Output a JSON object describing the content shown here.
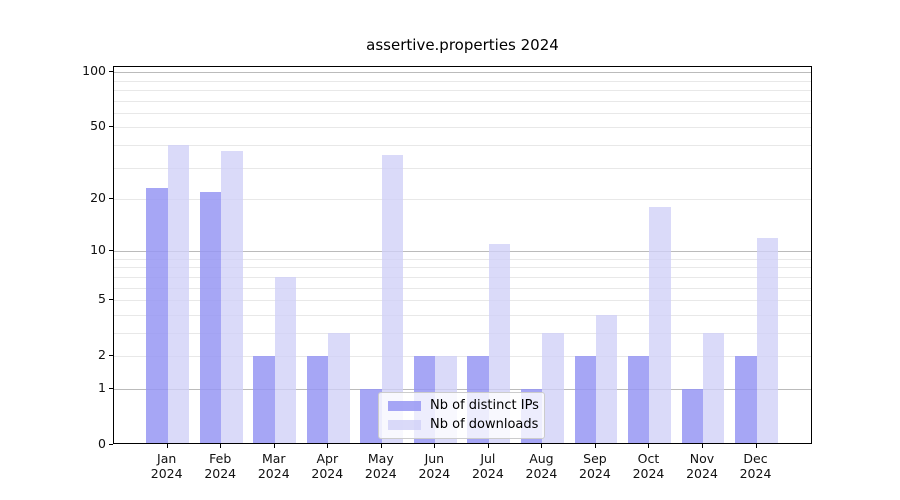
{
  "title": "assertive.properties 2024",
  "chart_data": {
    "type": "bar",
    "title": "assertive.properties 2024",
    "categories": [
      "Jan",
      "Feb",
      "Mar",
      "Apr",
      "May",
      "Jun",
      "Jul",
      "Aug",
      "Sep",
      "Oct",
      "Nov",
      "Dec"
    ],
    "year": "2024",
    "series": [
      {
        "name": "Nb of distinct IPs",
        "color": "#9797f3",
        "alpha": 0.85,
        "values": [
          23,
          22,
          2,
          2,
          1,
          2,
          2,
          1,
          2,
          2,
          1,
          2
        ]
      },
      {
        "name": "Nb of downloads",
        "color": "#cfcff7",
        "alpha": 0.78,
        "values": [
          40,
          37,
          7,
          3,
          35,
          2,
          11,
          3,
          4,
          18,
          3,
          12
        ]
      }
    ],
    "yscale": "log1p",
    "yticks": [
      0,
      1,
      2,
      5,
      10,
      20,
      50,
      100
    ],
    "minor_gridlines": [
      2,
      3,
      4,
      5,
      6,
      7,
      8,
      9,
      20,
      30,
      40,
      50,
      60,
      70,
      80,
      90
    ],
    "major_gridlines": [
      1,
      10,
      100
    ],
    "ylim": [
      0,
      106
    ],
    "grid": true,
    "legend_position": "lower center"
  },
  "colors": {
    "bar_distinct_ips": "#a6a6f5",
    "bar_downloads": "#d9d9f9",
    "grid_minor": "#e8e8e8",
    "grid_major": "#bbbbbb",
    "axis": "#000000",
    "background": "#ffffff"
  }
}
